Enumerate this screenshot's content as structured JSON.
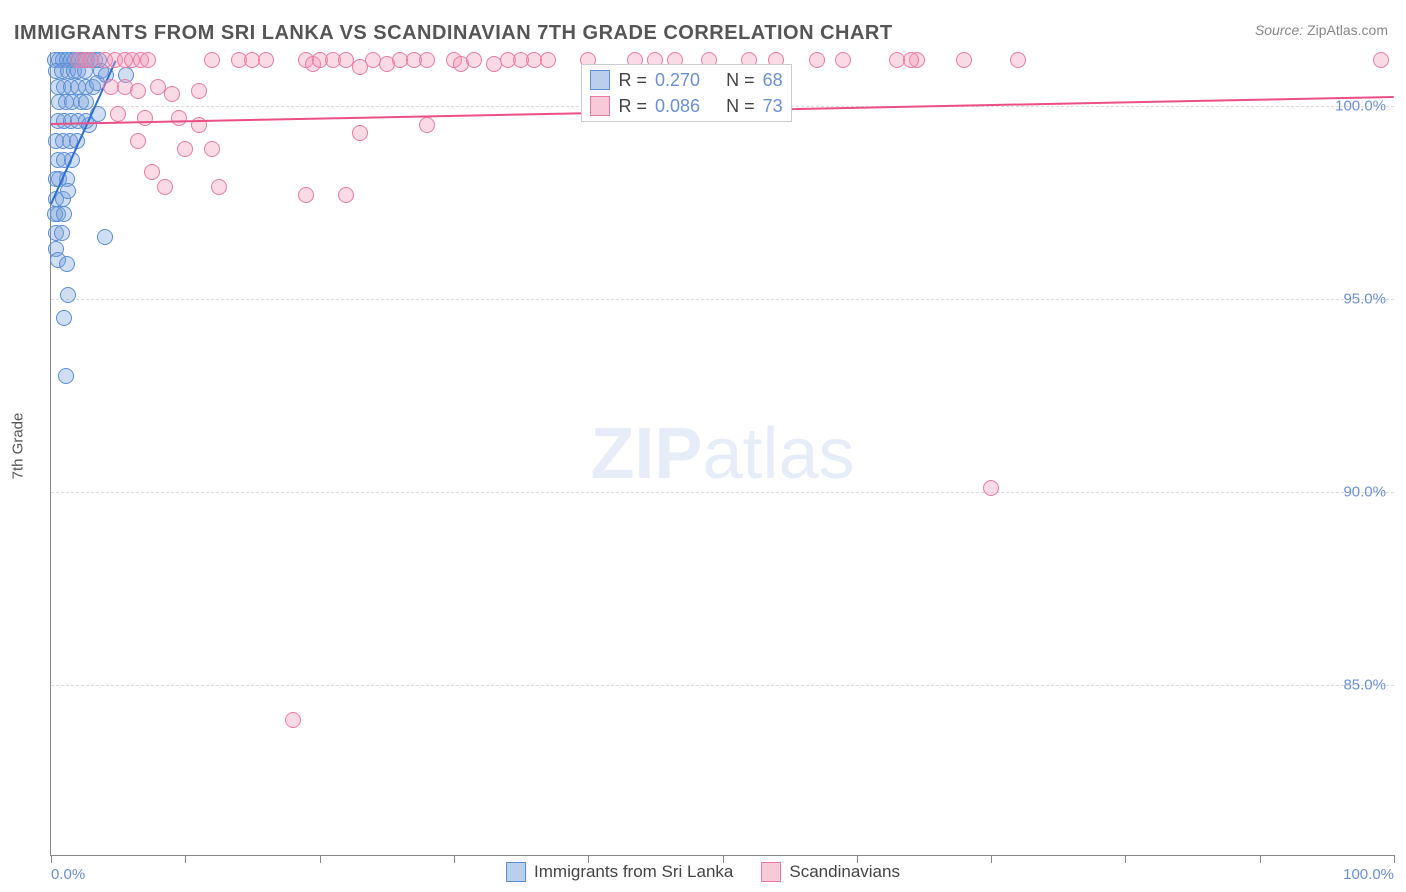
{
  "title": "IMMIGRANTS FROM SRI LANKA VS SCANDINAVIAN 7TH GRADE CORRELATION CHART",
  "source_label": "Source:",
  "source_value": "ZipAtlas.com",
  "watermark_bold": "ZIP",
  "watermark_light": "atlas",
  "chart": {
    "type": "scatter",
    "xlim": [
      0,
      100
    ],
    "ylim": [
      80.6,
      101.4
    ],
    "xticks": [
      0,
      10,
      20,
      30,
      40,
      50,
      60,
      70,
      80,
      90,
      100
    ],
    "xtick_labels": {
      "0": "0.0%",
      "100": "100.0%"
    },
    "yticks": [
      85,
      90,
      95,
      100
    ],
    "ytick_labels": {
      "85": "85.0%",
      "90": "90.0%",
      "95": "95.0%",
      "100": "100.0%"
    },
    "ylabel": "7th Grade",
    "marker_radius": 8,
    "background_color": "#ffffff",
    "grid_color": "#dddddd",
    "axis_color": "#888888",
    "label_color": "#6b8fd6",
    "series": [
      {
        "name": "Immigrants from Sri Lanka",
        "fill": "rgba(120,160,220,0.35)",
        "stroke": "#5a8fd6",
        "trend_stroke": "#2f6fd0",
        "R": "0.270",
        "N": "68",
        "trend": {
          "x1": 0,
          "y1": 97.5,
          "x2": 4.8,
          "y2": 101.2
        },
        "points": [
          [
            0.3,
            101.2
          ],
          [
            0.6,
            101.2
          ],
          [
            0.9,
            101.2
          ],
          [
            1.2,
            101.2
          ],
          [
            1.5,
            101.2
          ],
          [
            1.8,
            101.2
          ],
          [
            2.1,
            101.2
          ],
          [
            2.4,
            101.2
          ],
          [
            2.7,
            101.2
          ],
          [
            3.0,
            101.2
          ],
          [
            0.4,
            100.9
          ],
          [
            0.8,
            100.9
          ],
          [
            1.3,
            100.9
          ],
          [
            1.7,
            100.9
          ],
          [
            2.0,
            100.9
          ],
          [
            2.5,
            100.9
          ],
          [
            0.5,
            100.5
          ],
          [
            1.0,
            100.5
          ],
          [
            1.5,
            100.5
          ],
          [
            2.0,
            100.5
          ],
          [
            2.6,
            100.5
          ],
          [
            3.1,
            100.5
          ],
          [
            0.6,
            100.1
          ],
          [
            1.1,
            100.1
          ],
          [
            1.6,
            100.1
          ],
          [
            2.2,
            100.1
          ],
          [
            2.6,
            100.1
          ],
          [
            0.5,
            99.6
          ],
          [
            1.0,
            99.6
          ],
          [
            1.5,
            99.6
          ],
          [
            2.0,
            99.6
          ],
          [
            2.6,
            99.6
          ],
          [
            0.4,
            99.1
          ],
          [
            0.9,
            99.1
          ],
          [
            1.4,
            99.1
          ],
          [
            1.9,
            99.1
          ],
          [
            0.5,
            98.6
          ],
          [
            1.0,
            98.6
          ],
          [
            1.6,
            98.6
          ],
          [
            0.6,
            98.1
          ],
          [
            0.4,
            98.1
          ],
          [
            1.2,
            98.1
          ],
          [
            0.4,
            97.6
          ],
          [
            0.9,
            97.6
          ],
          [
            1.3,
            97.8
          ],
          [
            0.5,
            97.2
          ],
          [
            0.3,
            97.2
          ],
          [
            1.0,
            97.2
          ],
          [
            0.4,
            96.7
          ],
          [
            0.8,
            96.7
          ],
          [
            0.4,
            96.3
          ],
          [
            0.5,
            96.0
          ],
          [
            5.6,
            100.8
          ],
          [
            3.4,
            100.6
          ],
          [
            3.7,
            100.9
          ],
          [
            3.3,
            101.2
          ],
          [
            3.6,
            101.2
          ],
          [
            2.8,
            99.5
          ],
          [
            3.5,
            99.8
          ],
          [
            4.1,
            100.8
          ],
          [
            1.3,
            95.1
          ],
          [
            4.0,
            96.6
          ],
          [
            1.0,
            94.5
          ],
          [
            1.1,
            93.0
          ],
          [
            1.2,
            95.9
          ]
        ]
      },
      {
        "name": "Scandinavians",
        "fill": "rgba(240,150,180,0.35)",
        "stroke": "#ea7aa5",
        "trend_stroke": "#ea4f86",
        "R": "0.086",
        "N": "73",
        "trend": {
          "x1": 0,
          "y1": 99.55,
          "x2": 100,
          "y2": 100.25
        },
        "points": [
          [
            2.0,
            101.2
          ],
          [
            2.5,
            101.2
          ],
          [
            3.0,
            101.2
          ],
          [
            4.0,
            101.2
          ],
          [
            4.8,
            101.2
          ],
          [
            5.5,
            101.2
          ],
          [
            6.0,
            101.2
          ],
          [
            6.7,
            101.2
          ],
          [
            7.2,
            101.2
          ],
          [
            12,
            101.2
          ],
          [
            14,
            101.2
          ],
          [
            15,
            101.2
          ],
          [
            16,
            101.2
          ],
          [
            19,
            101.2
          ],
          [
            19.5,
            101.1
          ],
          [
            20,
            101.2
          ],
          [
            21,
            101.2
          ],
          [
            22,
            101.2
          ],
          [
            23,
            101.0
          ],
          [
            24,
            101.2
          ],
          [
            25,
            101.1
          ],
          [
            26,
            101.2
          ],
          [
            27,
            101.2
          ],
          [
            28,
            101.2
          ],
          [
            30,
            101.2
          ],
          [
            30.5,
            101.1
          ],
          [
            31.5,
            101.2
          ],
          [
            33,
            101.1
          ],
          [
            34,
            101.2
          ],
          [
            35,
            101.2
          ],
          [
            36,
            101.2
          ],
          [
            37,
            101.2
          ],
          [
            40,
            101.2
          ],
          [
            43.5,
            101.2
          ],
          [
            45,
            101.2
          ],
          [
            46.5,
            101.2
          ],
          [
            49,
            101.2
          ],
          [
            52,
            101.2
          ],
          [
            54,
            101.2
          ],
          [
            57,
            101.2
          ],
          [
            59,
            101.2
          ],
          [
            63,
            101.2
          ],
          [
            64.5,
            101.2
          ],
          [
            99,
            101.2
          ],
          [
            4.5,
            100.5
          ],
          [
            5.5,
            100.5
          ],
          [
            6.5,
            100.4
          ],
          [
            8,
            100.5
          ],
          [
            9,
            100.3
          ],
          [
            11,
            100.4
          ],
          [
            5.0,
            99.8
          ],
          [
            7.0,
            99.7
          ],
          [
            9.5,
            99.7
          ],
          [
            11,
            99.5
          ],
          [
            6.5,
            99.1
          ],
          [
            10,
            98.9
          ],
          [
            12,
            98.9
          ],
          [
            23,
            99.3
          ],
          [
            28,
            99.5
          ],
          [
            7.5,
            98.3
          ],
          [
            8.5,
            97.9
          ],
          [
            12.5,
            97.9
          ],
          [
            19,
            97.7
          ],
          [
            22,
            97.7
          ],
          [
            64,
            101.2
          ],
          [
            68,
            101.2
          ],
          [
            72,
            101.2
          ],
          [
            18,
            84.1
          ],
          [
            70,
            90.1
          ]
        ]
      }
    ]
  },
  "stats_box": {
    "rows": [
      {
        "swatch_fill": "rgba(120,160,220,0.5)",
        "swatch_stroke": "#5a8fd6",
        "r_label": "R =",
        "r_val": "0.270",
        "n_label": "N =",
        "n_val": "68"
      },
      {
        "swatch_fill": "rgba(240,150,180,0.5)",
        "swatch_stroke": "#ea7aa5",
        "r_label": "R =",
        "r_val": "0.086",
        "n_label": "N =",
        "n_val": "73"
      }
    ]
  },
  "legend": [
    {
      "swatch_fill": "rgba(120,160,220,0.5)",
      "swatch_stroke": "#5a8fd6",
      "label": "Immigrants from Sri Lanka"
    },
    {
      "swatch_fill": "rgba(240,150,180,0.5)",
      "swatch_stroke": "#ea7aa5",
      "label": "Scandinavians"
    }
  ]
}
